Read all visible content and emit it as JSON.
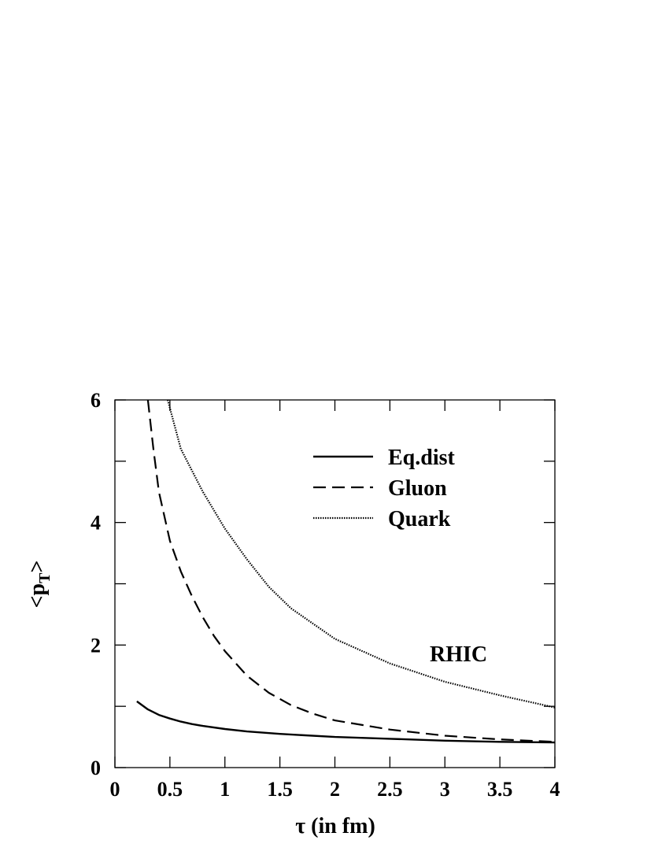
{
  "chart_data": {
    "type": "line",
    "title": "",
    "xlabel": "τ (in fm)",
    "ylabel": "<p",
    "ylabel_subscript": "T",
    "ylabel_suffix": ">",
    "xlim": [
      0,
      4
    ],
    "ylim": [
      0,
      6
    ],
    "x_ticks": [
      0,
      0.5,
      1,
      1.5,
      2,
      2.5,
      3,
      3.5,
      4
    ],
    "x_tick_labels": [
      "0",
      "0.5",
      "1",
      "1.5",
      "2",
      "2.5",
      "3",
      "3.5",
      "4"
    ],
    "y_ticks": [
      0,
      2,
      4,
      6
    ],
    "y_tick_labels": [
      "0",
      "2",
      "4",
      "6"
    ],
    "grid": false,
    "legend_position": "top-right",
    "annotation": "RHIC",
    "series": [
      {
        "name": "Eq.dist",
        "style": "solid",
        "x": [
          0.2,
          0.3,
          0.4,
          0.5,
          0.6,
          0.7,
          0.8,
          1.0,
          1.2,
          1.5,
          2.0,
          2.5,
          3.0,
          3.5,
          4.0
        ],
        "y": [
          1.08,
          0.95,
          0.86,
          0.8,
          0.75,
          0.71,
          0.68,
          0.63,
          0.59,
          0.55,
          0.5,
          0.47,
          0.44,
          0.42,
          0.41
        ]
      },
      {
        "name": "Gluon",
        "style": "dashed",
        "x": [
          0.3,
          0.35,
          0.4,
          0.5,
          0.6,
          0.7,
          0.8,
          0.9,
          1.0,
          1.2,
          1.4,
          1.6,
          1.8,
          2.0,
          2.5,
          3.0,
          3.5,
          4.0
        ],
        "y": [
          6.0,
          5.2,
          4.5,
          3.7,
          3.2,
          2.8,
          2.45,
          2.15,
          1.9,
          1.5,
          1.22,
          1.02,
          0.88,
          0.77,
          0.62,
          0.52,
          0.46,
          0.42
        ]
      },
      {
        "name": "Quark",
        "style": "dotted",
        "x": [
          0.48,
          0.6,
          0.8,
          1.0,
          1.2,
          1.4,
          1.6,
          1.8,
          2.0,
          2.5,
          3.0,
          3.5,
          4.0
        ],
        "y": [
          6.0,
          5.2,
          4.5,
          3.9,
          3.4,
          2.95,
          2.6,
          2.35,
          2.1,
          1.7,
          1.4,
          1.18,
          0.98
        ]
      }
    ]
  }
}
